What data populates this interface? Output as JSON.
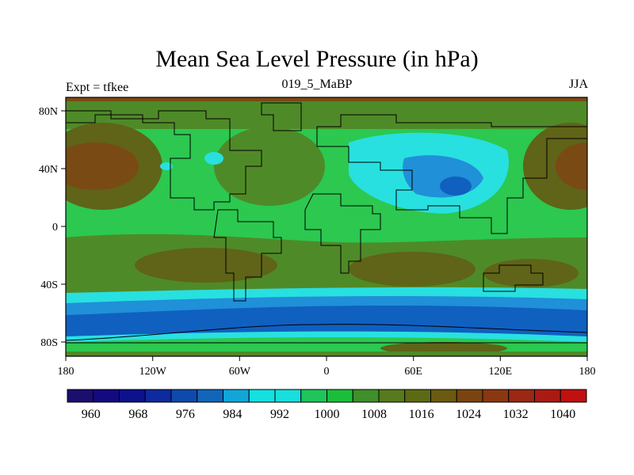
{
  "title": "Mean Sea Level Pressure (in hPa)",
  "subtitle": "019_5_MaBP",
  "left_label": "Expt = tfkee",
  "right_label": "JJA",
  "x_ticks": [
    "180",
    "120W",
    "60W",
    "0",
    "60E",
    "120E",
    "180"
  ],
  "y_ticks": [
    "80N",
    "40N",
    "0",
    "40S",
    "80S"
  ],
  "colorbar": {
    "labels": [
      "960",
      "968",
      "976",
      "984",
      "992",
      "1000",
      "1008",
      "1016",
      "1024",
      "1032",
      "1040"
    ],
    "colors": [
      "#1a0f6e",
      "#140a80",
      "#0c128c",
      "#0d2a9e",
      "#0e4aad",
      "#1066b8",
      "#12a6d8",
      "#15e0e0",
      "#19dede",
      "#20c45a",
      "#1bbe3c",
      "#3f8f2a",
      "#567a1c",
      "#5d6a14",
      "#6b5a10",
      "#7a4410",
      "#8a3712",
      "#9a2814",
      "#aa1a14",
      "#c01010"
    ],
    "range": [
      956,
      1044
    ]
  },
  "colors": {
    "deep_blue": "#1060c0",
    "mid_blue": "#2090d8",
    "cyan": "#28e0e0",
    "green": "#2cc850",
    "olive_green": "#4f8a28",
    "olive_brown": "#5f6418",
    "brown": "#7a4a14"
  }
}
